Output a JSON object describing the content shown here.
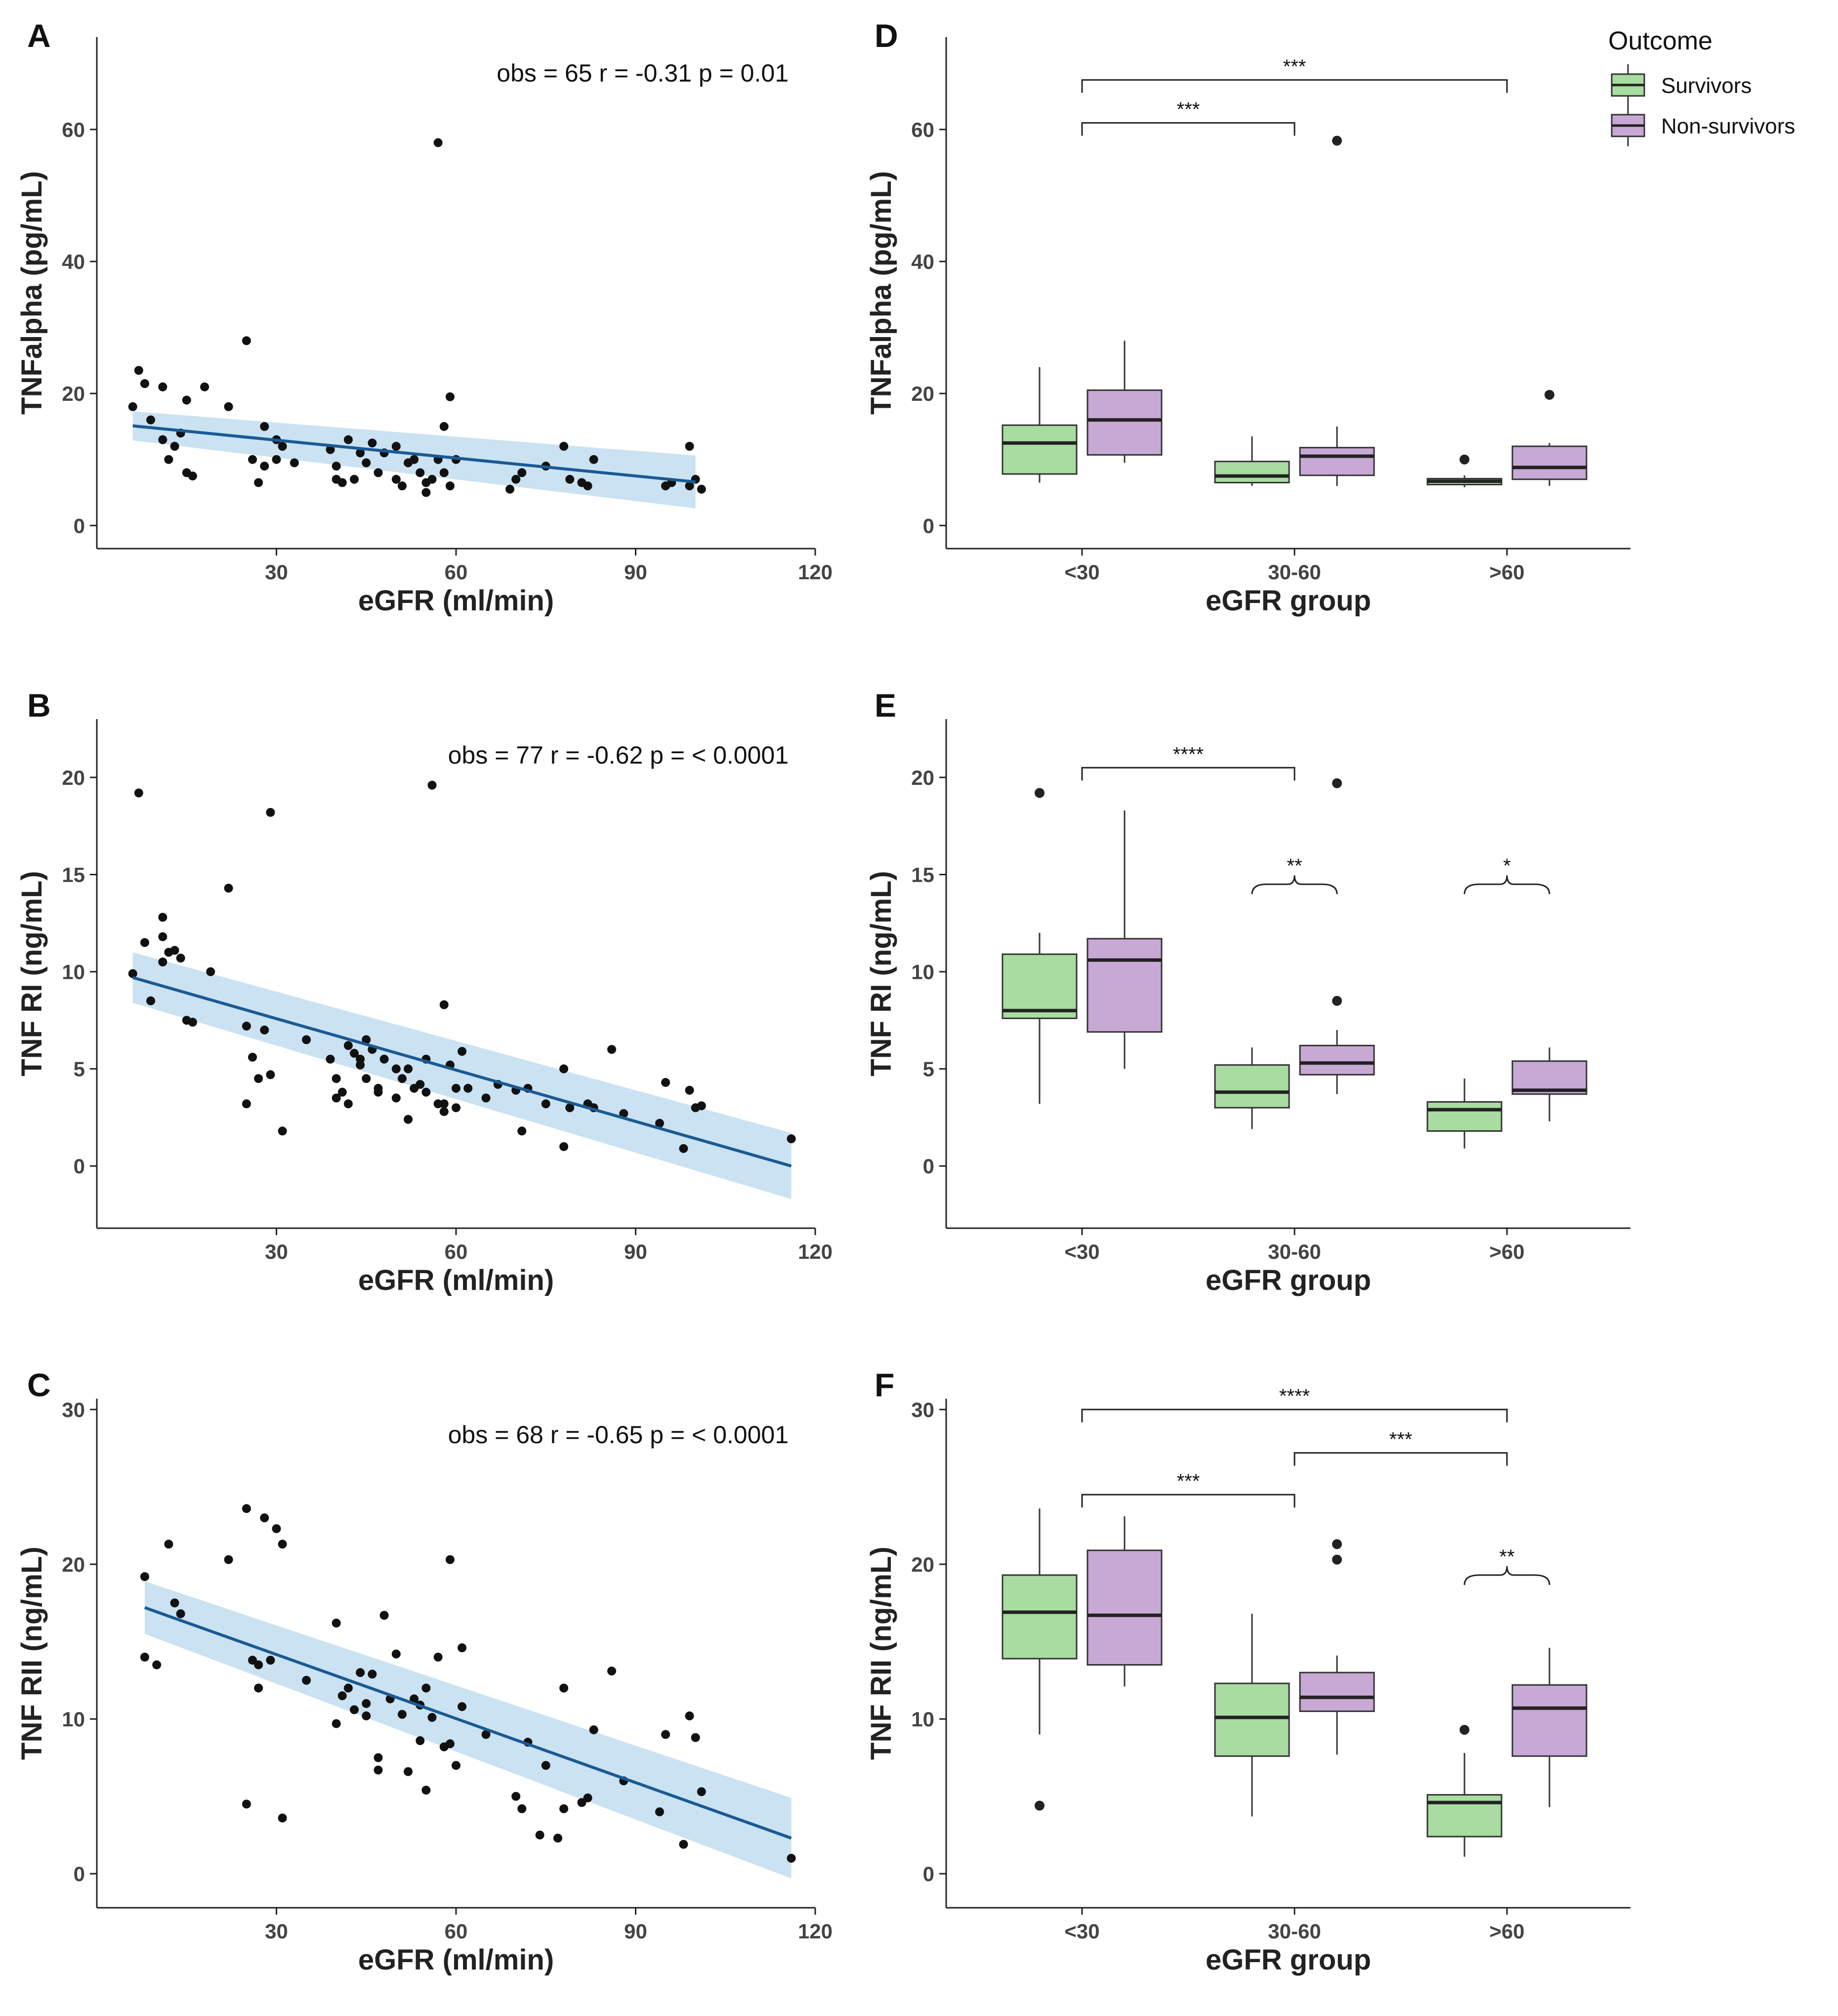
{
  "chart_data": [
    {
      "panel": "A",
      "type": "scatter",
      "xlabel": "eGFR (ml/min)",
      "ylabel": "TNFalpha (pg/mL)",
      "xlim": [
        0,
        120
      ],
      "ylim": [
        -3.5,
        74
      ],
      "xticks": [
        30,
        60,
        90,
        120
      ],
      "yticks": [
        0,
        20,
        40,
        60
      ],
      "stats": "obs = 65   r = -0.31   p = 0.01",
      "fit": {
        "x": [
          6,
          100
        ],
        "y": [
          15.1,
          6.6
        ],
        "ci_low": [
          12.9,
          2.6
        ],
        "ci_high": [
          17.3,
          10.6
        ]
      },
      "points": [
        [
          6,
          18
        ],
        [
          7,
          23.5
        ],
        [
          8,
          21.5
        ],
        [
          9,
          16
        ],
        [
          11,
          21
        ],
        [
          11,
          13
        ],
        [
          12,
          10
        ],
        [
          13,
          12
        ],
        [
          14,
          14
        ],
        [
          15,
          8
        ],
        [
          16,
          7.5
        ],
        [
          15,
          19
        ],
        [
          18,
          21
        ],
        [
          22,
          18
        ],
        [
          25,
          28
        ],
        [
          28,
          15
        ],
        [
          26,
          10
        ],
        [
          27,
          6.5
        ],
        [
          28,
          9
        ],
        [
          30,
          10
        ],
        [
          31,
          12
        ],
        [
          33,
          9.5
        ],
        [
          30,
          13
        ],
        [
          39,
          11.5
        ],
        [
          40,
          9
        ],
        [
          40,
          7
        ],
        [
          41,
          6.5
        ],
        [
          42,
          13
        ],
        [
          43,
          7
        ],
        [
          44,
          11
        ],
        [
          45,
          9.5
        ],
        [
          46,
          12.5
        ],
        [
          47,
          8
        ],
        [
          48,
          11
        ],
        [
          50,
          7
        ],
        [
          51,
          6
        ],
        [
          52,
          9.5
        ],
        [
          53,
          10
        ],
        [
          54,
          8
        ],
        [
          55,
          6.5
        ],
        [
          56,
          7
        ],
        [
          57,
          58
        ],
        [
          57,
          10
        ],
        [
          58,
          15
        ],
        [
          59,
          19.5
        ],
        [
          58,
          8
        ],
        [
          59,
          6
        ],
        [
          60,
          10
        ],
        [
          55,
          5
        ],
        [
          50,
          12
        ],
        [
          69,
          5.5
        ],
        [
          70,
          7
        ],
        [
          71,
          8
        ],
        [
          78,
          12
        ],
        [
          79,
          7
        ],
        [
          81,
          6.5
        ],
        [
          82,
          6
        ],
        [
          83,
          10
        ],
        [
          95,
          6
        ],
        [
          96,
          6.5
        ],
        [
          99,
          12
        ],
        [
          99,
          6
        ],
        [
          100,
          7
        ],
        [
          101,
          5.5
        ],
        [
          75,
          9
        ]
      ]
    },
    {
      "panel": "B",
      "type": "scatter",
      "xlabel": "eGFR (ml/min)",
      "ylabel": "TNF RI (ng/mL)",
      "xlim": [
        0,
        120
      ],
      "ylim": [
        -3.2,
        23
      ],
      "xticks": [
        30,
        60,
        90,
        120
      ],
      "yticks": [
        0,
        5,
        10,
        15,
        20
      ],
      "stats": "obs = 77   r = -0.62   p = < 0.0001",
      "fit": {
        "x": [
          6,
          116
        ],
        "y": [
          9.7,
          0
        ],
        "ci_low": [
          8.4,
          -1.7
        ],
        "ci_high": [
          11.0,
          1.7
        ]
      },
      "points": [
        [
          6,
          9.9
        ],
        [
          7,
          19.2
        ],
        [
          8,
          11.5
        ],
        [
          9,
          8.5
        ],
        [
          11,
          12.8
        ],
        [
          11,
          10.5
        ],
        [
          12,
          11
        ],
        [
          13,
          11.1
        ],
        [
          14,
          10.7
        ],
        [
          15,
          7.5
        ],
        [
          16,
          7.4
        ],
        [
          11,
          11.8
        ],
        [
          19,
          10
        ],
        [
          22,
          14.3
        ],
        [
          29,
          18.2
        ],
        [
          25,
          7.2
        ],
        [
          25,
          3.2
        ],
        [
          26,
          5.6
        ],
        [
          27,
          4.5
        ],
        [
          28,
          7
        ],
        [
          29,
          4.7
        ],
        [
          31,
          1.8
        ],
        [
          39,
          5.5
        ],
        [
          40,
          4.5
        ],
        [
          40,
          3.5
        ],
        [
          41,
          3.8
        ],
        [
          42,
          3.2
        ],
        [
          43,
          5.8
        ],
        [
          44,
          5.2
        ],
        [
          45,
          4.5
        ],
        [
          46,
          6
        ],
        [
          47,
          4
        ],
        [
          48,
          5.5
        ],
        [
          50,
          5
        ],
        [
          51,
          4.5
        ],
        [
          52,
          2.4
        ],
        [
          53,
          4
        ],
        [
          54,
          4.2
        ],
        [
          55,
          3.8
        ],
        [
          56,
          19.6
        ],
        [
          57,
          3.2
        ],
        [
          58,
          8.3
        ],
        [
          59,
          5.2
        ],
        [
          58,
          2.8
        ],
        [
          60,
          3
        ],
        [
          61,
          5.9
        ],
        [
          50,
          3.5
        ],
        [
          62,
          4
        ],
        [
          47,
          3.8
        ],
        [
          70,
          3.9
        ],
        [
          71,
          1.8
        ],
        [
          72,
          4
        ],
        [
          78,
          5
        ],
        [
          79,
          3
        ],
        [
          78,
          1
        ],
        [
          82,
          3.2
        ],
        [
          83,
          3
        ],
        [
          86,
          6
        ],
        [
          94,
          2.2
        ],
        [
          95,
          4.3
        ],
        [
          99,
          3.9
        ],
        [
          98,
          0.9
        ],
        [
          100,
          3
        ],
        [
          101,
          3.1
        ],
        [
          116,
          1.4
        ],
        [
          35,
          6.5
        ],
        [
          45,
          6.5
        ],
        [
          52,
          5
        ],
        [
          65,
          3.5
        ],
        [
          75,
          3.2
        ],
        [
          88,
          2.7
        ],
        [
          55,
          5.5
        ],
        [
          44,
          5.5
        ],
        [
          60,
          4
        ],
        [
          67,
          4.2
        ],
        [
          42,
          6.2
        ],
        [
          58,
          3.2
        ]
      ]
    },
    {
      "panel": "C",
      "type": "scatter",
      "xlabel": "eGFR (ml/min)",
      "ylabel": "TNF RII (ng/mL)",
      "xlim": [
        0,
        120
      ],
      "ylim": [
        -2.2,
        30.7
      ],
      "xticks": [
        30,
        60,
        90,
        120
      ],
      "yticks": [
        0,
        10,
        20,
        30
      ],
      "stats": "obs = 68   r = -0.65   p = < 0.0001",
      "fit": {
        "x": [
          8,
          116
        ],
        "y": [
          17.2,
          2.3
        ],
        "ci_low": [
          15.5,
          -0.3
        ],
        "ci_high": [
          18.9,
          4.9
        ]
      },
      "points": [
        [
          8,
          19.2
        ],
        [
          8,
          14
        ],
        [
          10,
          13.5
        ],
        [
          12,
          21.3
        ],
        [
          13,
          17.5
        ],
        [
          14,
          16.8
        ],
        [
          22,
          20.3
        ],
        [
          25,
          23.6
        ],
        [
          26,
          13.8
        ],
        [
          27,
          12
        ],
        [
          27,
          13.5
        ],
        [
          28,
          23
        ],
        [
          29,
          13.8
        ],
        [
          30,
          22.3
        ],
        [
          31,
          21.3
        ],
        [
          25,
          4.5
        ],
        [
          31,
          3.6
        ],
        [
          40,
          16.2
        ],
        [
          40,
          9.7
        ],
        [
          41,
          11.5
        ],
        [
          42,
          12
        ],
        [
          43,
          10.6
        ],
        [
          44,
          13
        ],
        [
          45,
          10.2
        ],
        [
          46,
          12.9
        ],
        [
          47,
          6.7
        ],
        [
          47,
          7.5
        ],
        [
          48,
          16.7
        ],
        [
          49,
          11.3
        ],
        [
          50,
          14.2
        ],
        [
          51,
          10.3
        ],
        [
          52,
          6.6
        ],
        [
          53,
          11.3
        ],
        [
          54,
          10.9
        ],
        [
          54,
          8.6
        ],
        [
          55,
          5.4
        ],
        [
          56,
          10.1
        ],
        [
          57,
          14
        ],
        [
          58,
          8.2
        ],
        [
          59,
          20.3
        ],
        [
          59,
          8.4
        ],
        [
          60,
          7
        ],
        [
          61,
          14.6
        ],
        [
          61,
          10.8
        ],
        [
          70,
          5
        ],
        [
          71,
          4.2
        ],
        [
          72,
          8.5
        ],
        [
          74,
          2.5
        ],
        [
          77,
          2.3
        ],
        [
          78,
          12
        ],
        [
          78,
          4.2
        ],
        [
          81,
          4.6
        ],
        [
          82,
          4.9
        ],
        [
          83,
          9.3
        ],
        [
          86,
          13.1
        ],
        [
          94,
          4
        ],
        [
          95,
          9
        ],
        [
          99,
          10.2
        ],
        [
          98,
          1.9
        ],
        [
          100,
          8.8
        ],
        [
          101,
          5.3
        ],
        [
          116,
          1
        ],
        [
          35,
          12.5
        ],
        [
          45,
          11
        ],
        [
          65,
          9
        ],
        [
          75,
          7
        ],
        [
          88,
          6
        ],
        [
          55,
          12
        ]
      ]
    },
    {
      "panel": "D",
      "type": "box",
      "xlabel": "eGFR group",
      "ylabel": "TNFalpha (pg/mL)",
      "ylim": [
        -3.5,
        74
      ],
      "yticks": [
        0,
        20,
        40,
        60
      ],
      "categories": [
        "<30",
        "30-60",
        ">60"
      ],
      "series": [
        {
          "name": "Survivors",
          "boxes": [
            {
              "q1": 7.8,
              "median": 12.5,
              "q3": 15.2,
              "lo": 6.5,
              "hi": 24,
              "outliers": []
            },
            {
              "q1": 6.5,
              "median": 7.5,
              "q3": 9.7,
              "lo": 6,
              "hi": 13.5,
              "outliers": []
            },
            {
              "q1": 6.2,
              "median": 6.7,
              "q3": 7.1,
              "lo": 5.8,
              "hi": 7.6,
              "outliers": [
                10
              ]
            }
          ]
        },
        {
          "name": "Non-survivors",
          "boxes": [
            {
              "q1": 10.7,
              "median": 16,
              "q3": 20.5,
              "lo": 9.5,
              "hi": 28,
              "outliers": []
            },
            {
              "q1": 7.6,
              "median": 10.5,
              "q3": 11.8,
              "lo": 6,
              "hi": 15,
              "outliers": [
                58.3
              ]
            },
            {
              "q1": 7,
              "median": 8.8,
              "q3": 12,
              "lo": 6,
              "hi": 12.5,
              "outliers": [
                19.8
              ]
            }
          ]
        }
      ],
      "brackets": [
        {
          "from": 0,
          "to": 1,
          "y": 61,
          "label": "***"
        },
        {
          "from": 0,
          "to": 2,
          "y": 67.5,
          "label": "***"
        }
      ],
      "braces": []
    },
    {
      "panel": "E",
      "type": "box",
      "xlabel": "eGFR group",
      "ylabel": "TNF RI (ng/mL)",
      "ylim": [
        -3.2,
        23
      ],
      "yticks": [
        0,
        5,
        10,
        15,
        20
      ],
      "categories": [
        "<30",
        "30-60",
        ">60"
      ],
      "series": [
        {
          "name": "Survivors",
          "boxes": [
            {
              "q1": 7.6,
              "median": 8,
              "q3": 10.9,
              "lo": 3.2,
              "hi": 12,
              "outliers": [
                19.2
              ]
            },
            {
              "q1": 3,
              "median": 3.8,
              "q3": 5.2,
              "lo": 1.9,
              "hi": 6.1,
              "outliers": []
            },
            {
              "q1": 1.8,
              "median": 2.9,
              "q3": 3.3,
              "lo": 0.9,
              "hi": 4.5,
              "outliers": []
            }
          ]
        },
        {
          "name": "Non-survivors",
          "boxes": [
            {
              "q1": 6.9,
              "median": 10.6,
              "q3": 11.7,
              "lo": 5,
              "hi": 18.3,
              "outliers": []
            },
            {
              "q1": 4.7,
              "median": 5.3,
              "q3": 6.2,
              "lo": 3.7,
              "hi": 7,
              "outliers": [
                8.5,
                19.7
              ]
            },
            {
              "q1": 3.7,
              "median": 3.9,
              "q3": 5.4,
              "lo": 2.3,
              "hi": 6.1,
              "outliers": []
            }
          ]
        }
      ],
      "brackets": [
        {
          "from": 0,
          "to": 1,
          "y": 20.5,
          "label": "****"
        }
      ],
      "braces": [
        {
          "group": 1,
          "y": 14.5,
          "label": "**"
        },
        {
          "group": 2,
          "y": 14.5,
          "label": "*"
        }
      ]
    },
    {
      "panel": "F",
      "type": "box",
      "xlabel": "eGFR group",
      "ylabel": "TNF RII (ng/mL)",
      "ylim": [
        -2.2,
        30.7
      ],
      "yticks": [
        0,
        10,
        20,
        30
      ],
      "categories": [
        "<30",
        "30-60",
        ">60"
      ],
      "series": [
        {
          "name": "Survivors",
          "boxes": [
            {
              "q1": 13.9,
              "median": 16.9,
              "q3": 19.3,
              "lo": 9,
              "hi": 23.6,
              "outliers": [
                4.4
              ]
            },
            {
              "q1": 7.6,
              "median": 10.1,
              "q3": 12.3,
              "lo": 3.7,
              "hi": 16.8,
              "outliers": []
            },
            {
              "q1": 2.4,
              "median": 4.6,
              "q3": 5.1,
              "lo": 1.1,
              "hi": 7.8,
              "outliers": [
                9.3
              ]
            }
          ]
        },
        {
          "name": "Non-survivors",
          "boxes": [
            {
              "q1": 13.5,
              "median": 16.7,
              "q3": 20.9,
              "lo": 12.1,
              "hi": 23.1,
              "outliers": []
            },
            {
              "q1": 10.5,
              "median": 11.4,
              "q3": 13,
              "lo": 7.7,
              "hi": 14.1,
              "outliers": [
                20.3,
                21.3
              ]
            },
            {
              "q1": 7.6,
              "median": 10.7,
              "q3": 12.2,
              "lo": 4.3,
              "hi": 14.6,
              "outliers": []
            }
          ]
        }
      ],
      "brackets": [
        {
          "from": 0,
          "to": 1,
          "y": 24.5,
          "label": "***"
        },
        {
          "from": 1,
          "to": 2,
          "y": 27.2,
          "label": "***"
        },
        {
          "from": 0,
          "to": 2,
          "y": 30,
          "label": "****"
        }
      ],
      "braces": [
        {
          "group": 2,
          "y": 19.3,
          "label": "**"
        }
      ]
    }
  ],
  "legend": {
    "title": "Outcome",
    "items": [
      {
        "label": "Survivors",
        "color": "#a8dca0"
      },
      {
        "label": "Non-survivors",
        "color": "#c8a8d4"
      }
    ]
  },
  "colors": {
    "fit_line": "#1a5a94",
    "ci_band": "#a6cfe8",
    "points": "#111111",
    "survivors": "#a8dca0",
    "non_survivors": "#c8a8d4",
    "box_stroke": "#333333",
    "axis": "#222222"
  }
}
